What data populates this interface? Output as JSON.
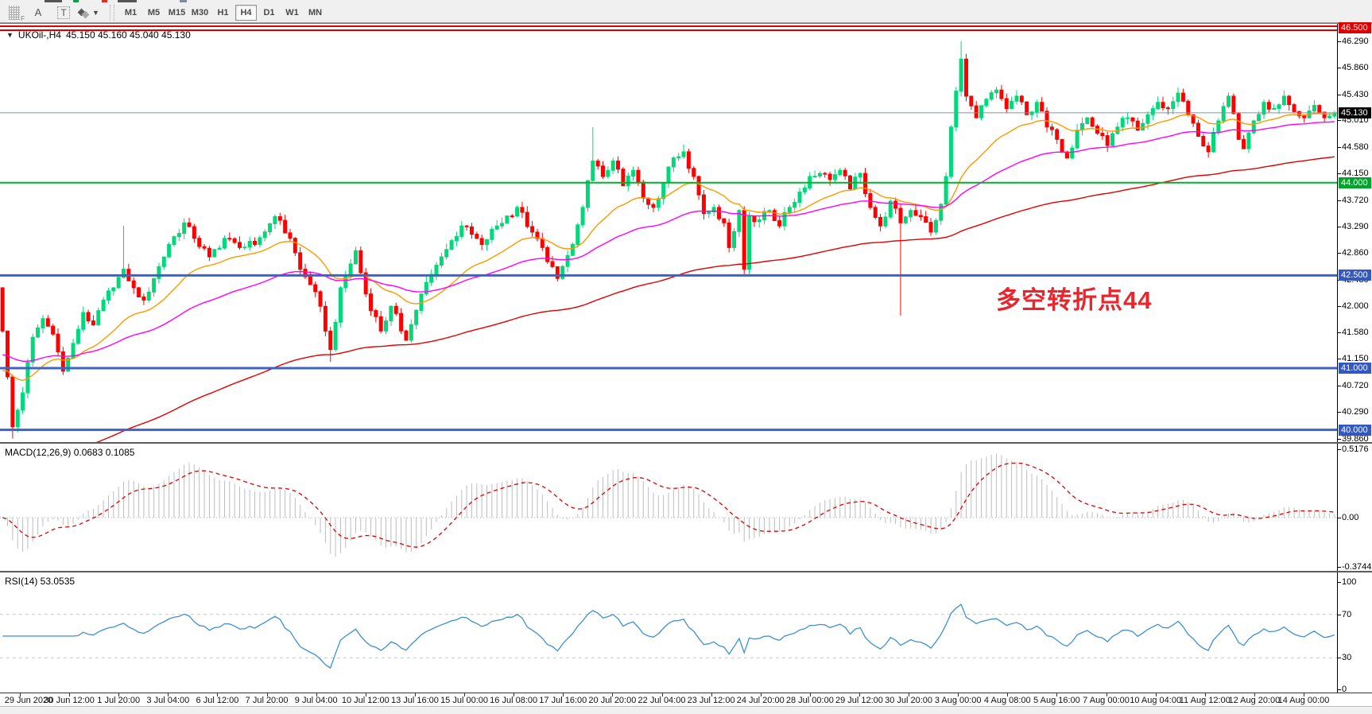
{
  "toolbar": {
    "tools": [
      {
        "name": "grid-f-tool",
        "label": "F"
      },
      {
        "name": "text-label-tool",
        "label": "A"
      },
      {
        "name": "text-box-tool",
        "label": "T"
      },
      {
        "name": "shapes-tool",
        "label": ""
      }
    ],
    "timeframes": [
      {
        "label": "M1",
        "active": false
      },
      {
        "label": "M5",
        "active": false
      },
      {
        "label": "M15",
        "active": false
      },
      {
        "label": "M30",
        "active": false
      },
      {
        "label": "H1",
        "active": false
      },
      {
        "label": "H4",
        "active": true
      },
      {
        "label": "D1",
        "active": false
      },
      {
        "label": "W1",
        "active": false
      },
      {
        "label": "MN",
        "active": false
      }
    ]
  },
  "chart": {
    "symbol_title": "UKOil-,H4",
    "ohlc_text": "45.150 45.160 45.040 45.130",
    "current_price_label": "45.130",
    "annotation": {
      "text": "多空转折点44",
      "color": "#e8262d"
    }
  },
  "macd_panel": {
    "label": "MACD(12,26,9) 0.0683 0.1085",
    "ticks": [
      "0.5176",
      "0.00",
      "-0.3744"
    ]
  },
  "rsi_panel": {
    "label": "RSI(14) 53.0535",
    "ticks": [
      "100",
      "70",
      "30",
      "0"
    ]
  },
  "chart_data": {
    "type": "candlestick",
    "symbol": "UKOil-",
    "timeframe": "H4",
    "current_ohlc": {
      "open": 45.15,
      "high": 45.16,
      "low": 45.04,
      "close": 45.13
    },
    "bars": 265,
    "up_color": "#00d87a",
    "down_color": "#ff0000",
    "y_axis": {
      "min": 39.79,
      "max": 46.57,
      "ticks": [
        46.29,
        45.86,
        45.43,
        45.01,
        44.58,
        44.15,
        43.72,
        43.29,
        42.86,
        42.43,
        42.0,
        41.58,
        41.15,
        40.72,
        40.29,
        39.86
      ]
    },
    "price_lines": [
      {
        "value": 46.5,
        "label": "46.500",
        "color": "#dd0000",
        "style": "double",
        "badge_bg": "#dd0000"
      },
      {
        "value": 45.13,
        "label": "45.130",
        "color": "#8494a0",
        "style": "current",
        "badge_bg": "#000000"
      },
      {
        "value": 44.0,
        "label": "44.000",
        "color": "#00b22d",
        "style": "solid",
        "badge_bg": "#00a42a",
        "width": 2
      },
      {
        "value": 42.5,
        "label": "42.500",
        "color": "#3c64c8",
        "style": "solid",
        "badge_bg": "#3558c0",
        "width": 3
      },
      {
        "value": 41.0,
        "label": "41.000",
        "color": "#3c64c8",
        "style": "solid",
        "badge_bg": "#3558c0",
        "width": 3
      },
      {
        "value": 40.0,
        "label": "40.000",
        "color": "#3c64c8",
        "style": "solid",
        "badge_bg": "#3558c0",
        "width": 3
      }
    ],
    "close_waypoints": [
      [
        0,
        41.6
      ],
      [
        2,
        40.05
      ],
      [
        4,
        40.6
      ],
      [
        6,
        41.5
      ],
      [
        8,
        41.8
      ],
      [
        10,
        41.55
      ],
      [
        12,
        40.95
      ],
      [
        14,
        41.4
      ],
      [
        16,
        41.9
      ],
      [
        18,
        41.7
      ],
      [
        20,
        42.1
      ],
      [
        22,
        42.3
      ],
      [
        24,
        42.6
      ],
      [
        26,
        42.3
      ],
      [
        28,
        42.1
      ],
      [
        30,
        42.45
      ],
      [
        33,
        43.0
      ],
      [
        36,
        43.35
      ],
      [
        38,
        43.1
      ],
      [
        41,
        42.8
      ],
      [
        44,
        43.1
      ],
      [
        47,
        42.95
      ],
      [
        50,
        43.0
      ],
      [
        54,
        43.45
      ],
      [
        57,
        43.1
      ],
      [
        59,
        42.6
      ],
      [
        61,
        42.35
      ],
      [
        63,
        42.0
      ],
      [
        65,
        41.3
      ],
      [
        67,
        42.3
      ],
      [
        70,
        42.9
      ],
      [
        72,
        42.2
      ],
      [
        75,
        41.6
      ],
      [
        77,
        42.0
      ],
      [
        80,
        41.45
      ],
      [
        83,
        42.2
      ],
      [
        87,
        42.8
      ],
      [
        91,
        43.3
      ],
      [
        95,
        43.0
      ],
      [
        98,
        43.3
      ],
      [
        102,
        43.6
      ],
      [
        105,
        43.2
      ],
      [
        107,
        42.95
      ],
      [
        110,
        42.45
      ],
      [
        113,
        43.0
      ],
      [
        115,
        43.6
      ],
      [
        117,
        44.35
      ],
      [
        119,
        44.1
      ],
      [
        121,
        44.35
      ],
      [
        123,
        43.95
      ],
      [
        125,
        44.2
      ],
      [
        127,
        43.75
      ],
      [
        129,
        43.6
      ],
      [
        131,
        44.0
      ],
      [
        133,
        44.4
      ],
      [
        135,
        44.5
      ],
      [
        137,
        44.1
      ],
      [
        139,
        43.5
      ],
      [
        141,
        43.6
      ],
      [
        143,
        43.35
      ],
      [
        144,
        42.95
      ],
      [
        146,
        43.55
      ],
      [
        147,
        42.6
      ],
      [
        148,
        43.45
      ],
      [
        150,
        43.4
      ],
      [
        152,
        43.55
      ],
      [
        154,
        43.3
      ],
      [
        156,
        43.6
      ],
      [
        158,
        43.85
      ],
      [
        160,
        44.1
      ],
      [
        162,
        44.15
      ],
      [
        164,
        44.05
      ],
      [
        166,
        44.2
      ],
      [
        168,
        43.9
      ],
      [
        170,
        44.15
      ],
      [
        172,
        43.6
      ],
      [
        174,
        43.3
      ],
      [
        176,
        43.7
      ],
      [
        178,
        43.35
      ],
      [
        180,
        43.55
      ],
      [
        182,
        43.45
      ],
      [
        184,
        43.2
      ],
      [
        186,
        43.65
      ],
      [
        187,
        44.1
      ],
      [
        188,
        44.9
      ],
      [
        190,
        46.0
      ],
      [
        191,
        45.4
      ],
      [
        193,
        45.05
      ],
      [
        195,
        45.35
      ],
      [
        197,
        45.5
      ],
      [
        199,
        45.2
      ],
      [
        201,
        45.4
      ],
      [
        203,
        45.1
      ],
      [
        205,
        45.3
      ],
      [
        207,
        44.9
      ],
      [
        209,
        44.7
      ],
      [
        211,
        44.4
      ],
      [
        213,
        44.85
      ],
      [
        215,
        45.05
      ],
      [
        217,
        44.8
      ],
      [
        219,
        44.6
      ],
      [
        221,
        44.9
      ],
      [
        223,
        45.05
      ],
      [
        225,
        44.85
      ],
      [
        227,
        45.1
      ],
      [
        229,
        45.3
      ],
      [
        231,
        45.2
      ],
      [
        233,
        45.45
      ],
      [
        235,
        45.1
      ],
      [
        237,
        44.75
      ],
      [
        239,
        44.5
      ],
      [
        241,
        45.0
      ],
      [
        243,
        45.4
      ],
      [
        245,
        44.7
      ],
      [
        246,
        44.55
      ],
      [
        248,
        45.0
      ],
      [
        250,
        45.3
      ],
      [
        252,
        45.2
      ],
      [
        254,
        45.4
      ],
      [
        256,
        45.15
      ],
      [
        258,
        45.05
      ],
      [
        260,
        45.25
      ],
      [
        262,
        45.05
      ],
      [
        264,
        45.13
      ]
    ],
    "open_override": {
      "0": 42.3
    },
    "wick_overrides": {
      "2": {
        "low": 39.86
      },
      "24": {
        "high": 43.3
      },
      "65": {
        "low": 41.1
      },
      "117": {
        "high": 44.9
      },
      "135": {
        "high": 44.62
      },
      "178": {
        "low": 41.85
      },
      "190": {
        "high": 46.29
      },
      "264": {
        "high": 45.16,
        "low": 45.04
      }
    },
    "moving_averages": [
      {
        "period": 21,
        "color": "#ff9900",
        "seed": 40.9
      },
      {
        "period": 55,
        "color": "#ff00ff",
        "seed": 41.2
      },
      {
        "period": 140,
        "color": "#e00000",
        "seed": 39.3
      }
    ],
    "macd": {
      "fast": 12,
      "slow": 26,
      "signal_period": 9,
      "main_current": 0.0683,
      "signal_current": 0.1085,
      "range": [
        -0.3744,
        0.5176
      ],
      "hist_color": "#bdbdbd",
      "signal_color": "#e00000"
    },
    "rsi": {
      "period": 14,
      "current": 53.0535,
      "range": [
        0,
        100
      ],
      "levels": [
        70,
        30
      ],
      "color": "#3f8fd4"
    },
    "x_labels": [
      "29 Jun 2020",
      "30 Jun 12:00",
      "1 Jul 20:00",
      "3 Jul 04:00",
      "6 Jul 12:00",
      "7 Jul 20:00",
      "9 Jul 04:00",
      "10 Jul 12:00",
      "13 Jul 16:00",
      "15 Jul 00:00",
      "16 Jul 08:00",
      "17 Jul 16:00",
      "20 Jul 20:00",
      "22 Jul 04:00",
      "23 Jul 12:00",
      "24 Jul 20:00",
      "28 Jul 00:00",
      "29 Jul 12:00",
      "30 Jul 20:00",
      "3 Aug 00:00",
      "4 Aug 08:00",
      "5 Aug 16:00",
      "7 Aug 00:00",
      "10 Aug 04:00",
      "11 Aug 12:00",
      "12 Aug 20:00",
      "14 Aug 00:00"
    ]
  }
}
